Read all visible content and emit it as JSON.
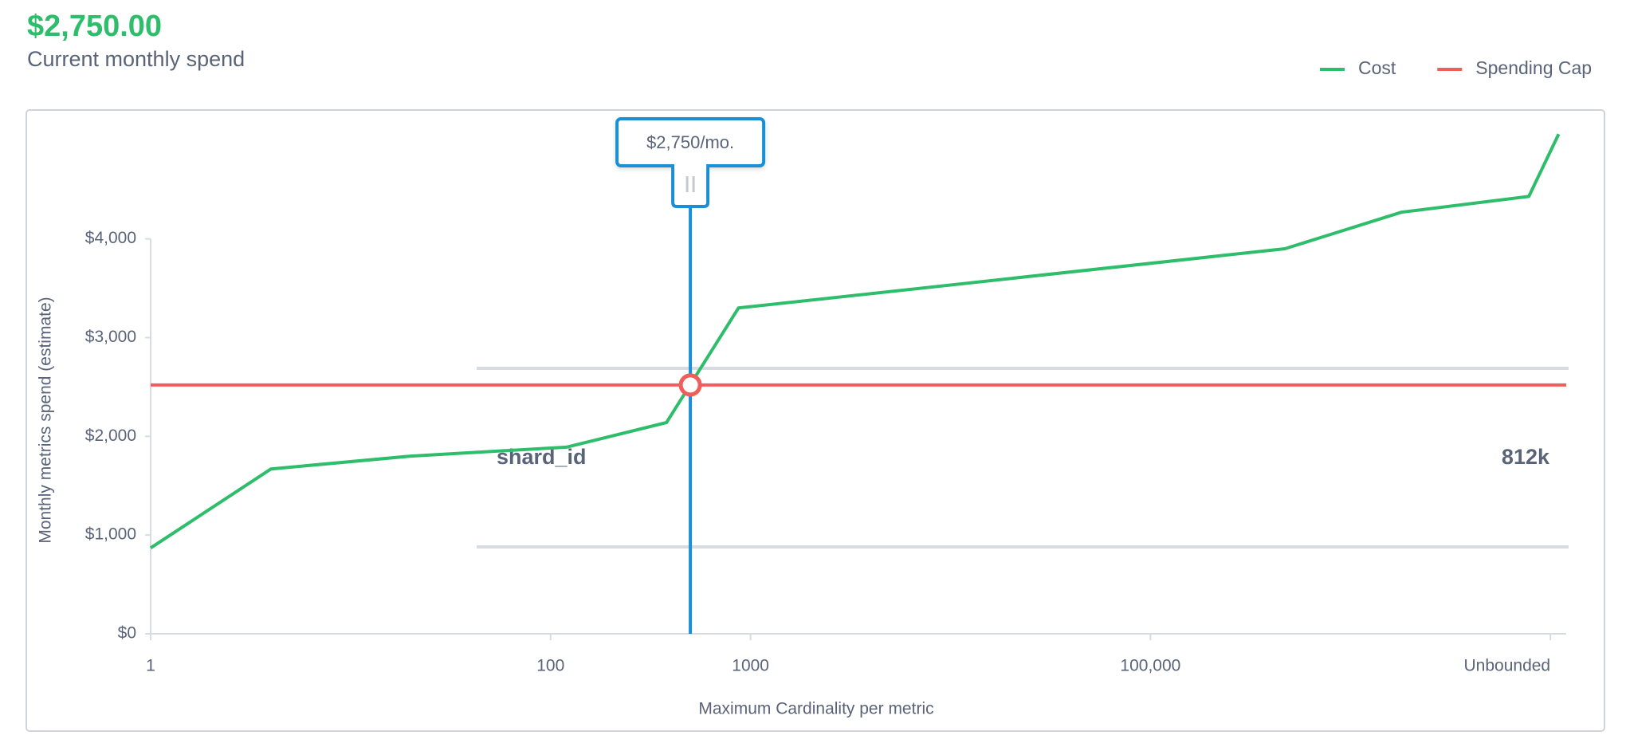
{
  "header": {
    "amount": "$2,750.00",
    "subtitle": "Current monthly spend"
  },
  "chart_data": {
    "type": "line",
    "x_label": "Maximum Cardinality per metric",
    "y_label": "Monthly metrics spend (estimate)",
    "log_x": true,
    "xlim": [
      1,
      12000000
    ],
    "xticks": [
      1,
      100,
      1000,
      {
        "value": 100000,
        "label": "100,000"
      },
      {
        "value": 10000000,
        "label": "Unbounded"
      }
    ],
    "ylim": [
      0,
      5200
    ],
    "yticks": [
      {
        "value": 0,
        "label": "$0"
      },
      {
        "value": 1000,
        "label": "$1,000"
      },
      {
        "value": 2000,
        "label": "$2,000"
      },
      {
        "value": 3000,
        "label": "$3,000"
      },
      {
        "value": 4000,
        "label": "$4,000"
      }
    ],
    "series": [
      {
        "name": "Cost",
        "color": "#2ebd6b",
        "x": [
          1,
          4,
          20,
          120,
          380,
          870,
          470000,
          1800000,
          7800000,
          11000000
        ],
        "values": [
          870,
          1670,
          1800,
          1890,
          2140,
          3300,
          3900,
          4270,
          4430,
          5060
        ]
      }
    ],
    "spending_cap": {
      "name": "Spending Cap",
      "color": "#ef5e5a",
      "value": 2520
    },
    "cursor": {
      "x": 500,
      "label": "$2,750/mo.",
      "color": "#1a8fd6"
    },
    "panel": {
      "name": "shard_id",
      "value_label": "812k"
    }
  }
}
